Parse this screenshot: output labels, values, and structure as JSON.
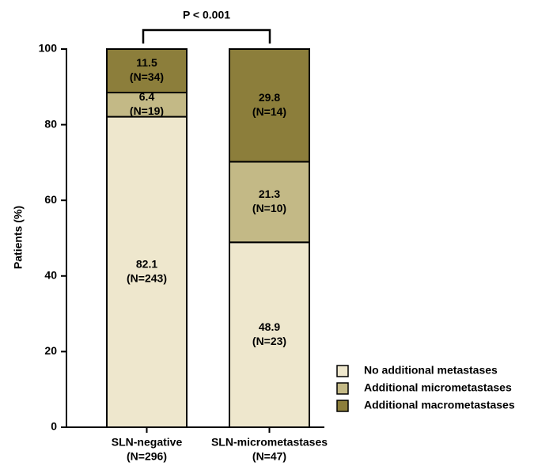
{
  "chart_data": {
    "type": "stacked_bar",
    "ylabel": "Patients (%)",
    "categories": [
      "SLN-negative",
      "SLN-micrometastases"
    ],
    "category_counts": [
      "(N=296)",
      "(N=47)"
    ],
    "series": [
      {
        "name": "No additional metastases",
        "color": "#eee7cd",
        "values": [
          82.1,
          48.9
        ],
        "count_labels": [
          "(N=243)",
          "(N=23)"
        ]
      },
      {
        "name": "Additional micrometastases",
        "color": "#c3b986",
        "values": [
          6.4,
          21.3
        ],
        "count_labels": [
          "(N=19)",
          "(N=10)"
        ]
      },
      {
        "name": "Additional macrometastases",
        "color": "#8c7e3b",
        "values": [
          11.5,
          29.8
        ],
        "count_labels": [
          "(N=34)",
          "(N=14)"
        ]
      }
    ],
    "annotation": "P < 0.001",
    "ylim": [
      0,
      100
    ],
    "yticks": [
      0,
      20,
      40,
      60,
      80,
      100
    ],
    "legend": "lower right"
  }
}
